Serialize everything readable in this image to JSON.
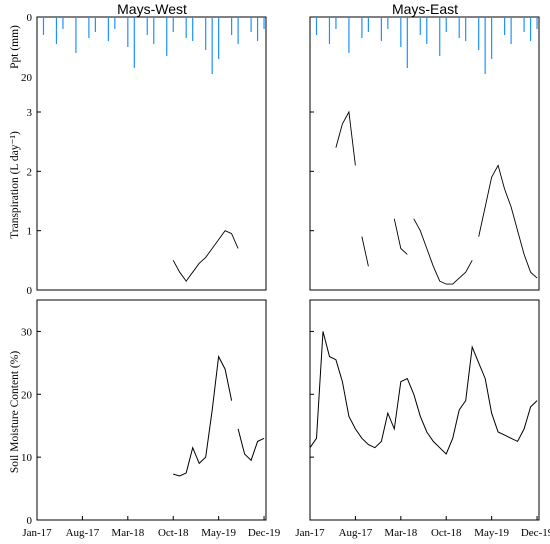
{
  "chart_data": [
    {
      "type": "bar",
      "panel": "Mays-West precipitation",
      "title": "Mays-West",
      "ylabel": "Ppt (mm)",
      "y_axis": "inverted",
      "ylim": [
        0,
        20
      ],
      "yticks": [
        "0",
        "20"
      ],
      "color": "#1e90ff",
      "x_range": [
        "Jan-17",
        "Dec-19"
      ],
      "series": [
        {
          "x": [
            "Feb-17",
            "Apr-17",
            "May-17",
            "Jul-17",
            "Sep-17",
            "Oct-17",
            "Dec-17",
            "Jan-18",
            "Mar-18",
            "Apr-18",
            "Jun-18",
            "Jul-18",
            "Sep-18",
            "Oct-18",
            "Dec-18",
            "Jan-19",
            "Mar-19",
            "Apr-19",
            "May-19",
            "Jul-19",
            "Aug-19",
            "Oct-19",
            "Nov-19",
            "Dec-19"
          ],
          "values": [
            6,
            9,
            4,
            12,
            7,
            5,
            8,
            4,
            10,
            17,
            6,
            9,
            13,
            5,
            7,
            8,
            11,
            19,
            14,
            6,
            9,
            5,
            8,
            4
          ]
        }
      ]
    },
    {
      "type": "bar",
      "panel": "Mays-East precipitation",
      "title": "Mays-East",
      "y_axis": "inverted",
      "ylim": [
        0,
        20
      ],
      "color": "#1e90ff",
      "x_range": [
        "Jan-17",
        "Dec-19"
      ],
      "series": [
        {
          "x": [
            "Feb-17",
            "Apr-17",
            "May-17",
            "Jul-17",
            "Sep-17",
            "Oct-17",
            "Dec-17",
            "Jan-18",
            "Mar-18",
            "Apr-18",
            "Jun-18",
            "Jul-18",
            "Sep-18",
            "Oct-18",
            "Dec-18",
            "Jan-19",
            "Mar-19",
            "Apr-19",
            "May-19",
            "Jul-19",
            "Aug-19",
            "Oct-19",
            "Nov-19",
            "Dec-19"
          ],
          "values": [
            6,
            9,
            4,
            12,
            7,
            5,
            8,
            4,
            10,
            17,
            6,
            9,
            13,
            5,
            7,
            8,
            11,
            19,
            14,
            6,
            9,
            5,
            8,
            4
          ]
        }
      ]
    },
    {
      "type": "line",
      "panel": "Mays-West transpiration",
      "ylabel": "Transpiration (L day⁻¹)",
      "ylim": [
        0,
        3
      ],
      "yticks": [
        "0",
        "1",
        "2",
        "3"
      ],
      "series": [
        {
          "x": [
            "Oct-18",
            "Nov-18",
            "Dec-18",
            "Jan-19",
            "Feb-19",
            "Mar-19",
            "Apr-19",
            "May-19",
            "Jun-19",
            "Jul-19",
            "Aug-19"
          ],
          "values": [
            0.5,
            0.3,
            0.15,
            0.3,
            0.45,
            0.55,
            0.7,
            0.85,
            1.0,
            0.95,
            0.7
          ]
        }
      ]
    },
    {
      "type": "line",
      "panel": "Mays-East transpiration",
      "ylim": [
        0,
        3
      ],
      "series": [
        {
          "x": [
            "May-17",
            "Jun-17",
            "Jul-17",
            "Aug-17"
          ],
          "values": [
            2.4,
            2.8,
            3.0,
            2.1
          ]
        },
        {
          "x": [
            "Sep-17",
            "Oct-17"
          ],
          "values": [
            0.9,
            0.4
          ]
        },
        {
          "x": [
            "Feb-18",
            "Mar-18",
            "Apr-18"
          ],
          "values": [
            1.2,
            0.7,
            0.6
          ]
        },
        {
          "x": [
            "May-18",
            "Jun-18",
            "Jul-18",
            "Aug-18",
            "Sep-18",
            "Oct-18",
            "Nov-18",
            "Dec-18",
            "Jan-19",
            "Feb-19"
          ],
          "values": [
            1.2,
            1.0,
            0.7,
            0.4,
            0.15,
            0.1,
            0.1,
            0.2,
            0.3,
            0.5
          ]
        },
        {
          "x": [
            "Mar-19",
            "Apr-19",
            "May-19",
            "Jun-19",
            "Jul-19",
            "Aug-19",
            "Sep-19",
            "Oct-19",
            "Nov-19",
            "Dec-19"
          ],
          "values": [
            0.9,
            1.4,
            1.9,
            2.1,
            1.7,
            1.4,
            1.0,
            0.6,
            0.3,
            0.2
          ]
        }
      ]
    },
    {
      "type": "line",
      "panel": "Mays-West soil moisture",
      "ylabel": "Soil Moisture Content (%)",
      "ylim": [
        0,
        35
      ],
      "yticks": [
        "0",
        "10",
        "20",
        "30"
      ],
      "xticks": [
        "Jan-17",
        "Aug-17",
        "Mar-18",
        "Oct-18",
        "May-19",
        "Dec-19"
      ],
      "series": [
        {
          "x": [
            "Oct-18",
            "Nov-18",
            "Dec-18",
            "Jan-19",
            "Feb-19",
            "Mar-19",
            "Apr-19",
            "May-19",
            "Jun-19",
            "Jul-19"
          ],
          "values": [
            7.3,
            7.0,
            7.5,
            11.5,
            9.0,
            10.0,
            17.5,
            26.0,
            24.0,
            19.0
          ]
        },
        {
          "x": [
            "Aug-19",
            "Sep-19",
            "Oct-19",
            "Nov-19",
            "Dec-19"
          ],
          "values": [
            14.5,
            10.5,
            9.5,
            12.5,
            13.0
          ]
        }
      ]
    },
    {
      "type": "line",
      "panel": "Mays-East soil moisture",
      "ylim": [
        0,
        35
      ],
      "xticks": [
        "Jan-17",
        "Aug-17",
        "Mar-18",
        "Oct-18",
        "May-19",
        "Dec-19"
      ],
      "series": [
        {
          "x": [
            "Jan-17",
            "Feb-17",
            "Mar-17",
            "Apr-17",
            "May-17",
            "Jun-17",
            "Jul-17",
            "Aug-17",
            "Sep-17",
            "Oct-17",
            "Nov-17",
            "Dec-17",
            "Jan-18",
            "Feb-18",
            "Mar-18",
            "Apr-18",
            "May-18",
            "Jun-18",
            "Jul-18",
            "Aug-18",
            "Sep-18",
            "Oct-18",
            "Nov-18",
            "Dec-18",
            "Jan-19",
            "Feb-19",
            "Mar-19",
            "Apr-19",
            "May-19",
            "Jun-19",
            "Jul-19",
            "Aug-19",
            "Sep-19",
            "Oct-19",
            "Nov-19",
            "Dec-19"
          ],
          "values": [
            11.5,
            13.0,
            30.0,
            26.0,
            25.5,
            22.0,
            16.5,
            14.5,
            13.0,
            12.0,
            11.5,
            12.5,
            17.0,
            14.5,
            22.0,
            22.5,
            20.0,
            16.5,
            14.0,
            12.5,
            11.5,
            10.5,
            13.0,
            17.5,
            19.0,
            27.5,
            25.0,
            22.5,
            17.0,
            14.0,
            13.5,
            13.0,
            12.5,
            14.5,
            18.0,
            19.0
          ]
        }
      ]
    }
  ]
}
